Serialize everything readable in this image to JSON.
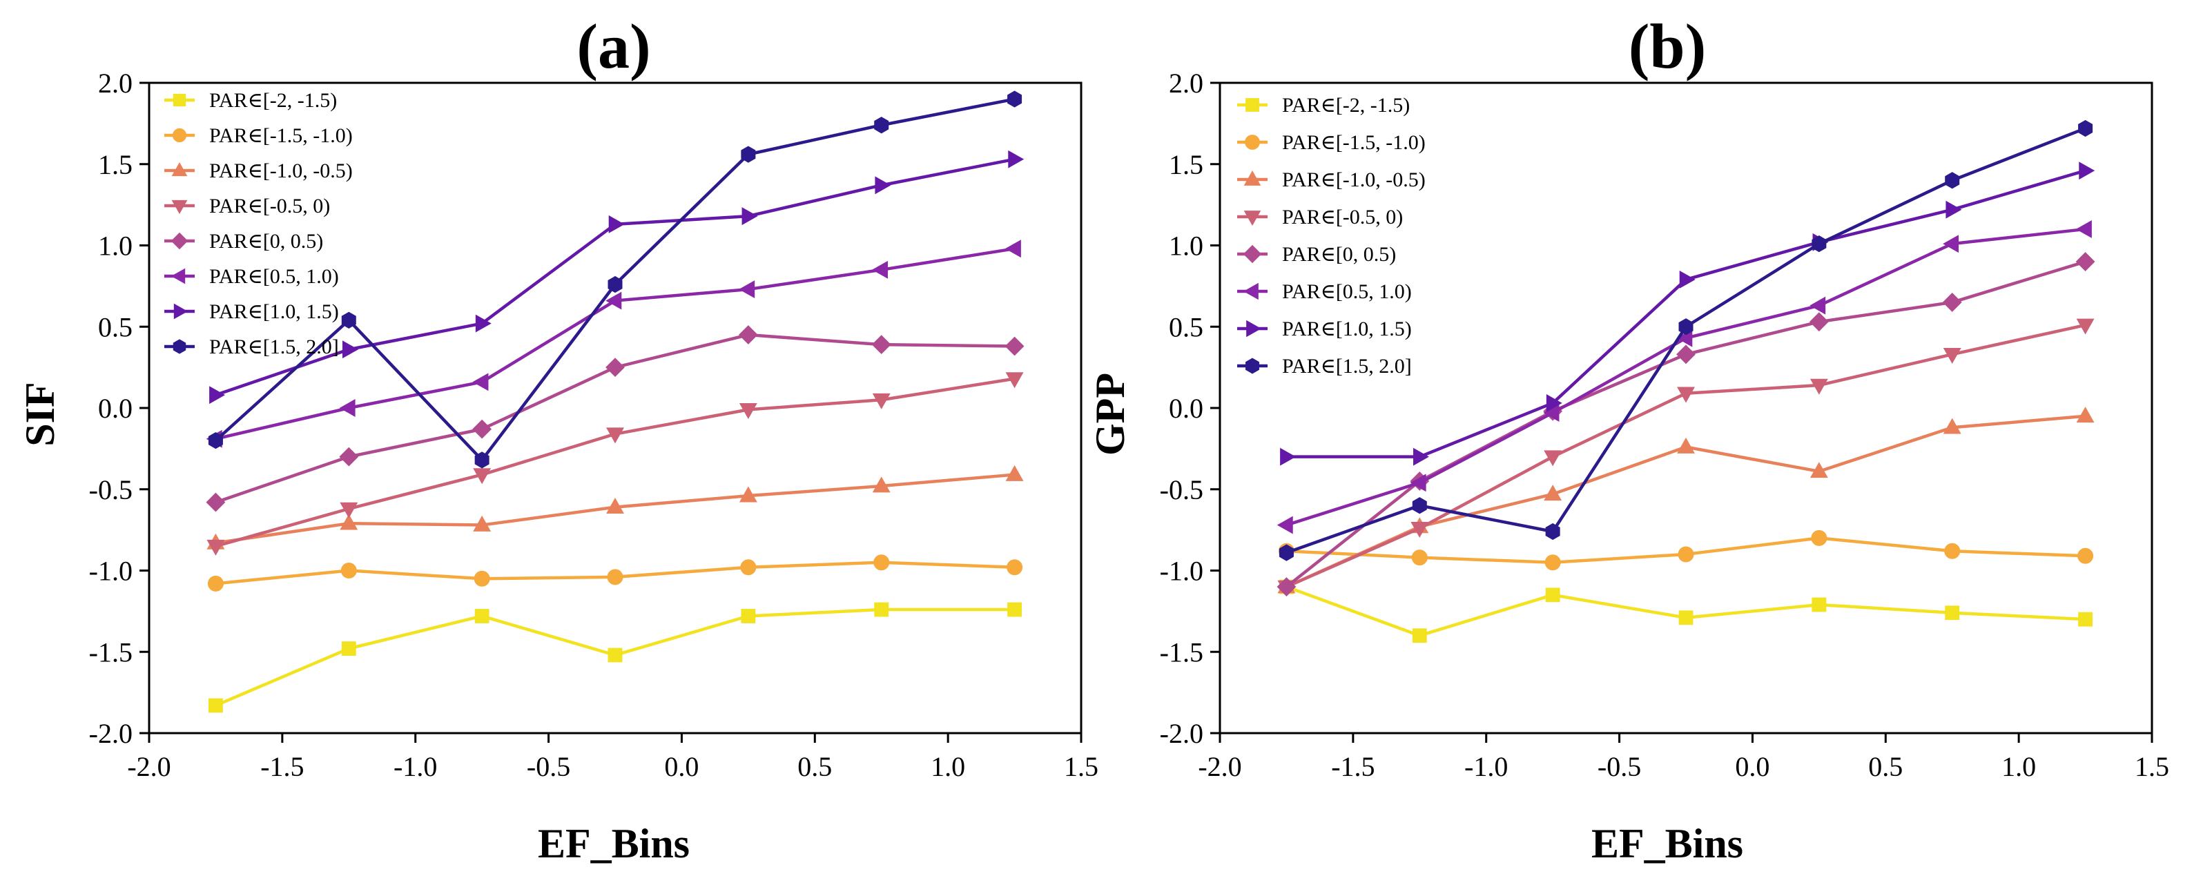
{
  "chart_data": [
    {
      "type": "line",
      "panel_label": "(a)",
      "xlabel": "EF_Bins",
      "ylabel": "SIF",
      "xlim": [
        -2.0,
        1.5
      ],
      "ylim": [
        -2.0,
        2.0
      ],
      "xticks": [
        -2.0,
        -1.5,
        -1.0,
        -0.5,
        0.0,
        0.5,
        1.0,
        1.5
      ],
      "yticks": [
        -2.0,
        -1.5,
        -1.0,
        -0.5,
        0.0,
        0.5,
        1.0,
        1.5,
        2.0
      ],
      "xtick_labels": [
        "-2.0",
        "-1.5",
        "-1.0",
        "-0.5",
        "0.0",
        "0.5",
        "1.0",
        "1.5"
      ],
      "ytick_labels": [
        "-2.0",
        "-1.5",
        "-1.0",
        "-0.5",
        "0.0",
        "0.5",
        "1.0",
        "1.5",
        "2.0"
      ],
      "grid": false,
      "legend_position": "top-left",
      "x": [
        -1.75,
        -1.25,
        -0.75,
        -0.25,
        0.25,
        0.75,
        1.25
      ],
      "series": [
        {
          "name": "PAR∈[-2, -1.5)",
          "color": "#f2e21f",
          "marker": "square",
          "values": [
            -1.83,
            -1.48,
            -1.28,
            -1.52,
            -1.28,
            -1.24,
            -1.24
          ]
        },
        {
          "name": "PAR∈[-1.5, -1.0)",
          "color": "#f6aa3c",
          "marker": "circle",
          "values": [
            -1.08,
            -1.0,
            -1.05,
            -1.04,
            -0.98,
            -0.95,
            -0.98
          ]
        },
        {
          "name": "PAR∈[-1.0, -0.5)",
          "color": "#e8815a",
          "marker": "triangle-up",
          "values": [
            -0.83,
            -0.71,
            -0.72,
            -0.61,
            -0.54,
            -0.48,
            -0.41
          ]
        },
        {
          "name": "PAR∈[-0.5, 0)",
          "color": "#cc6074",
          "marker": "triangle-down",
          "values": [
            -0.85,
            -0.62,
            -0.41,
            -0.16,
            -0.01,
            0.05,
            0.18
          ]
        },
        {
          "name": "PAR∈[0, 0.5)",
          "color": "#b04a8e",
          "marker": "diamond",
          "values": [
            -0.58,
            -0.3,
            -0.13,
            0.25,
            0.45,
            0.39,
            0.38
          ]
        },
        {
          "name": "PAR∈[0.5, 1.0)",
          "color": "#8a27a8",
          "marker": "triangle-left",
          "values": [
            -0.19,
            0.0,
            0.16,
            0.66,
            0.73,
            0.85,
            0.98
          ]
        },
        {
          "name": "PAR∈[1.0, 1.5)",
          "color": "#6418a8",
          "marker": "triangle-right",
          "values": [
            0.08,
            0.36,
            0.52,
            1.13,
            1.18,
            1.37,
            1.53
          ]
        },
        {
          "name": "PAR∈[1.5, 2.0]",
          "color": "#2a1a8c",
          "marker": "hexagon",
          "values": [
            -0.2,
            0.54,
            -0.32,
            0.76,
            1.56,
            1.74,
            1.9
          ]
        }
      ]
    },
    {
      "type": "line",
      "panel_label": "(b)",
      "xlabel": "EF_Bins",
      "ylabel": "GPP",
      "xlim": [
        -2.0,
        1.5
      ],
      "ylim": [
        -2.0,
        2.0
      ],
      "xticks": [
        -2.0,
        -1.5,
        -1.0,
        -0.5,
        0.0,
        0.5,
        1.0,
        1.5
      ],
      "yticks": [
        -2.0,
        -1.5,
        -1.0,
        -0.5,
        0.0,
        0.5,
        1.0,
        1.5,
        2.0
      ],
      "xtick_labels": [
        "-2.0",
        "-1.5",
        "-1.0",
        "-0.5",
        "0.0",
        "0.5",
        "1.0",
        "1.5"
      ],
      "ytick_labels": [
        "-2.0",
        "-1.5",
        "-1.0",
        "-0.5",
        "0.0",
        "0.5",
        "1.0",
        "1.5",
        "2.0"
      ],
      "grid": false,
      "legend_position": "top-left",
      "x": [
        -1.75,
        -1.25,
        -0.75,
        -0.25,
        0.25,
        0.75,
        1.25
      ],
      "series": [
        {
          "name": "PAR∈[-2, -1.5)",
          "color": "#f2e21f",
          "marker": "square",
          "values": [
            -1.1,
            -1.4,
            -1.15,
            -1.29,
            -1.21,
            -1.26,
            -1.3
          ]
        },
        {
          "name": "PAR∈[-1.5, -1.0)",
          "color": "#f6aa3c",
          "marker": "circle",
          "values": [
            -0.88,
            -0.92,
            -0.95,
            -0.9,
            -0.8,
            -0.88,
            -0.91
          ]
        },
        {
          "name": "PAR∈[-1.0, -0.5)",
          "color": "#e8815a",
          "marker": "triangle-up",
          "values": [
            -1.1,
            -0.73,
            -0.53,
            -0.24,
            -0.39,
            -0.12,
            -0.05
          ]
        },
        {
          "name": "PAR∈[-0.5, 0)",
          "color": "#cc6074",
          "marker": "triangle-down",
          "values": [
            -1.1,
            -0.74,
            -0.3,
            0.09,
            0.14,
            0.33,
            0.51
          ]
        },
        {
          "name": "PAR∈[0, 0.5)",
          "color": "#b04a8e",
          "marker": "diamond",
          "values": [
            -1.1,
            -0.45,
            -0.02,
            0.33,
            0.53,
            0.65,
            0.9
          ]
        },
        {
          "name": "PAR∈[0.5, 1.0)",
          "color": "#8a27a8",
          "marker": "triangle-left",
          "values": [
            -0.72,
            -0.46,
            -0.03,
            0.43,
            0.63,
            1.01,
            1.1
          ]
        },
        {
          "name": "PAR∈[1.0, 1.5)",
          "color": "#6418a8",
          "marker": "triangle-right",
          "values": [
            -0.3,
            -0.3,
            0.03,
            0.79,
            1.02,
            1.22,
            1.46
          ]
        },
        {
          "name": "PAR∈[1.5, 2.0]",
          "color": "#2a1a8c",
          "marker": "hexagon",
          "values": [
            -0.89,
            -0.6,
            -0.76,
            0.5,
            1.01,
            1.4,
            1.72
          ]
        }
      ]
    }
  ]
}
